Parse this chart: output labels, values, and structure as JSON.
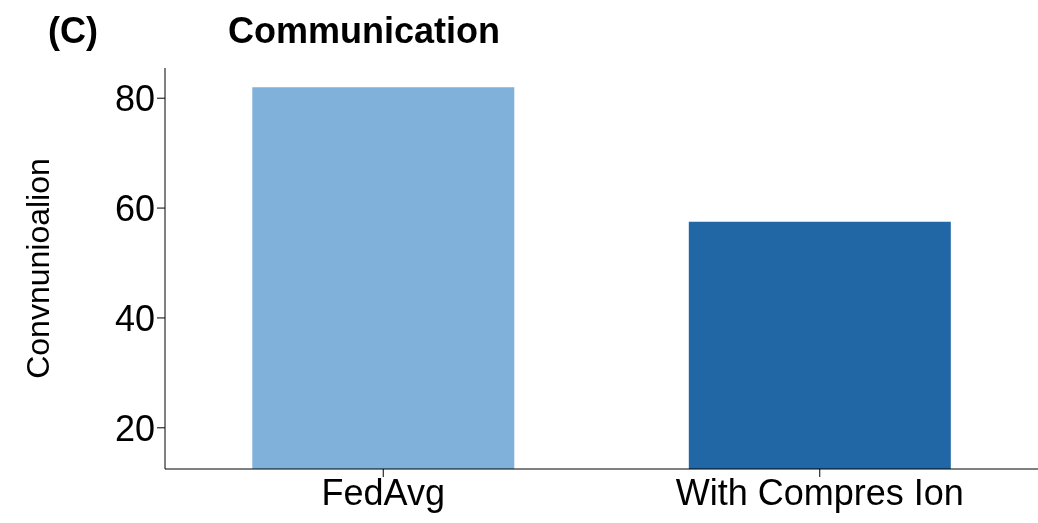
{
  "chart_data": {
    "type": "bar",
    "title": "Communication",
    "annotations": [
      "(C)"
    ],
    "ylabel": "Convnunioalion",
    "categories": [
      "FedAvg",
      "With Compres Ion"
    ],
    "values": [
      82,
      57.5
    ],
    "colors": [
      "#7fb1da",
      "#2166a5"
    ],
    "ylim": [
      12.5,
      85.5
    ],
    "yticks": [
      20,
      40,
      60,
      80
    ]
  }
}
